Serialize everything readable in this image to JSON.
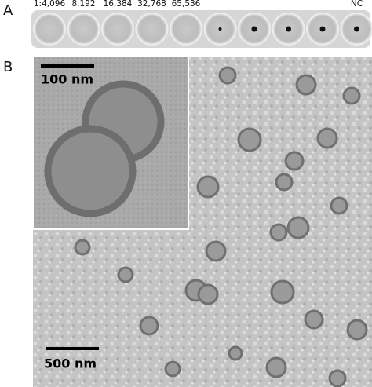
{
  "panel_a": {
    "label": "A",
    "well_labels": [
      "1:4,096",
      "8,192",
      "16,384",
      "32,768",
      "65,536",
      null,
      null,
      null,
      null,
      "NC"
    ]
  },
  "panel_b": {
    "label": "B",
    "inset_scale_bar": "100 nm",
    "main_scale_bar": "500 nm"
  }
}
